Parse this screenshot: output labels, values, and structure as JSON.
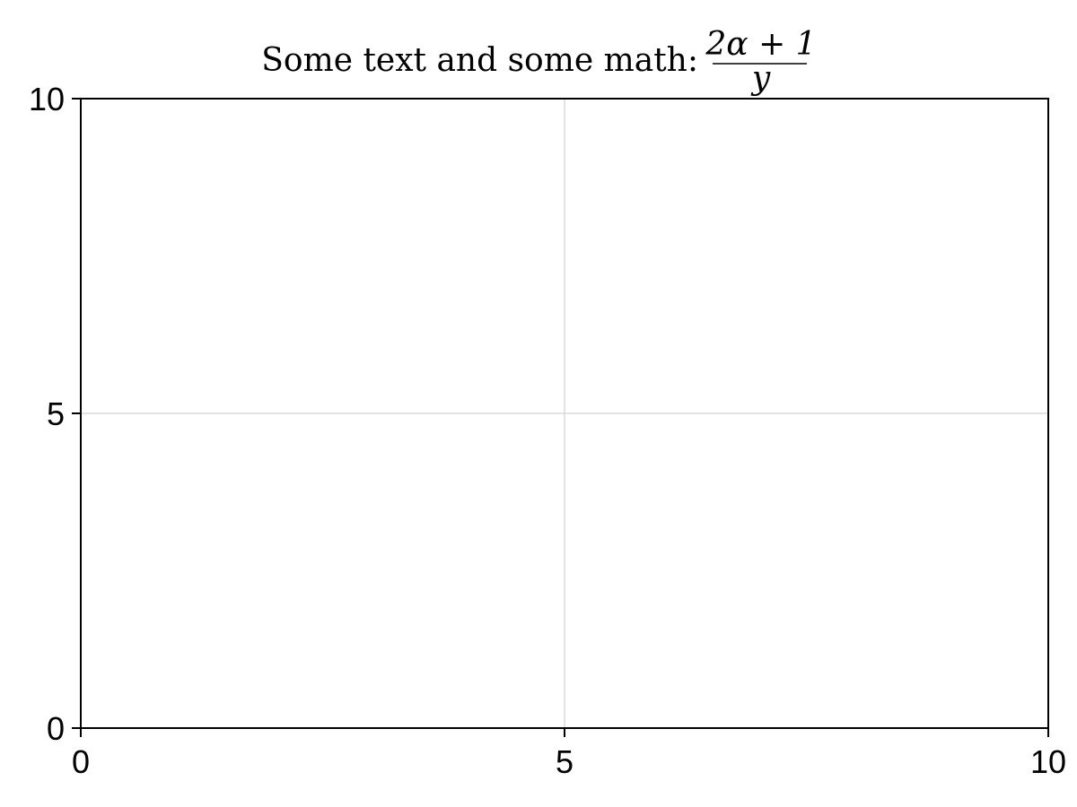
{
  "chart_data": {
    "type": "line",
    "title": {
      "text": "Some text and some math:",
      "math_numerator": "2α + 1",
      "math_denominator": "y"
    },
    "xlabel": "",
    "ylabel": "",
    "xlim": [
      0,
      10
    ],
    "ylim": [
      0,
      10
    ],
    "xticks": [
      0,
      5,
      10
    ],
    "yticks": [
      0,
      5,
      10
    ],
    "xtick_labels": [
      "0",
      "5",
      "10"
    ],
    "ytick_labels": [
      "0",
      "5",
      "10"
    ],
    "grid": true,
    "series": []
  }
}
